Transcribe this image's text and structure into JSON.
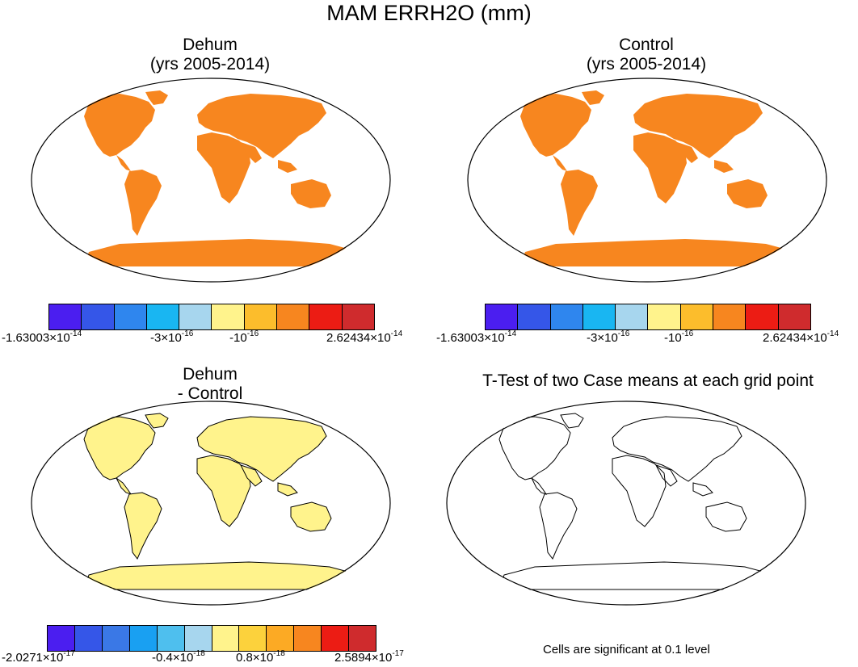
{
  "title": "MAM ERRH2O (mm)",
  "panels": {
    "dehum": {
      "title1": "Dehum",
      "title2": "(yrs 2005-2014)"
    },
    "control": {
      "title1": "Control",
      "title2": "(yrs 2005-2014)"
    },
    "diff": {
      "title1": "Dehum",
      "title2": "- Control"
    },
    "ttest": {
      "title1": "T-Test of two Case means at each grid point",
      "note": "Cells are significant at 0.1 level"
    }
  },
  "colorbars": {
    "top": {
      "colors": [
        "#4b1ef0",
        "#3556e8",
        "#2f86ee",
        "#19b6f2",
        "#a7d6ee",
        "#fff38c",
        "#fcbd2c",
        "#f7861f",
        "#ec1c14",
        "#cf2b2d"
      ],
      "labels": [
        {
          "base": "-1.63003×10",
          "exp": "-14"
        },
        {
          "base": "-3×10",
          "exp": "-16"
        },
        {
          "base": "-10",
          "exp": "-16"
        },
        {
          "base": "2.62434×10",
          "exp": "-14"
        }
      ]
    },
    "bottom": {
      "colors": [
        "#4b1ef0",
        "#3556e8",
        "#3a78e6",
        "#19a0f2",
        "#4ebfee",
        "#a7d6ee",
        "#fff38c",
        "#fcd23c",
        "#fcaa24",
        "#f7861f",
        "#ec1c14",
        "#cf2b2d"
      ],
      "labels": [
        {
          "base": "-2.0271×10",
          "exp": "-17"
        },
        {
          "base": "-0.4×10",
          "exp": "-18"
        },
        {
          "base": "0.8×10",
          "exp": "-18"
        },
        {
          "base": "2.5894×10",
          "exp": "-17"
        }
      ]
    }
  }
}
